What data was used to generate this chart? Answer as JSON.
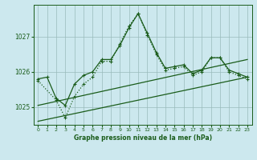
{
  "title": "Graphe pression niveau de la mer (hPa)",
  "bg_color": "#cce8ee",
  "grid_color": "#99bbbb",
  "line_color": "#1a5c1a",
  "xlim": [
    -0.5,
    23.5
  ],
  "ylim": [
    1024.5,
    1027.9
  ],
  "yticks": [
    1025,
    1026,
    1027
  ],
  "xticks": [
    0,
    1,
    2,
    3,
    4,
    5,
    6,
    7,
    8,
    9,
    10,
    11,
    12,
    13,
    14,
    15,
    16,
    17,
    18,
    19,
    20,
    21,
    22,
    23
  ],
  "series1_x": [
    0,
    1,
    2,
    3,
    4,
    5,
    6,
    7,
    8,
    9,
    10,
    11,
    12,
    13,
    14,
    15,
    16,
    17,
    18,
    19,
    20,
    21,
    22,
    23
  ],
  "series1_y": [
    1025.8,
    1025.85,
    1025.25,
    1025.05,
    1025.65,
    1025.9,
    1026.0,
    1026.35,
    1026.35,
    1026.75,
    1027.25,
    1027.65,
    1027.1,
    1026.55,
    1026.1,
    1026.15,
    1026.2,
    1025.95,
    1026.05,
    1026.4,
    1026.4,
    1026.05,
    1025.95,
    1025.85
  ],
  "series2_x": [
    0,
    2,
    3,
    4,
    5,
    6,
    7,
    8,
    9,
    10,
    11,
    12,
    13,
    14,
    15,
    16,
    17,
    18,
    19,
    20,
    21,
    22,
    23
  ],
  "series2_y": [
    1025.75,
    1025.2,
    1024.7,
    1025.3,
    1025.65,
    1025.85,
    1026.3,
    1026.3,
    1026.8,
    1027.3,
    1027.65,
    1027.05,
    1026.5,
    1026.05,
    1026.1,
    1026.15,
    1025.9,
    1026.0,
    1026.4,
    1026.4,
    1026.0,
    1025.9,
    1025.8
  ],
  "trend1_x": [
    0,
    23
  ],
  "trend1_y": [
    1025.05,
    1026.35
  ],
  "trend2_x": [
    0,
    23
  ],
  "trend2_y": [
    1024.6,
    1025.85
  ]
}
